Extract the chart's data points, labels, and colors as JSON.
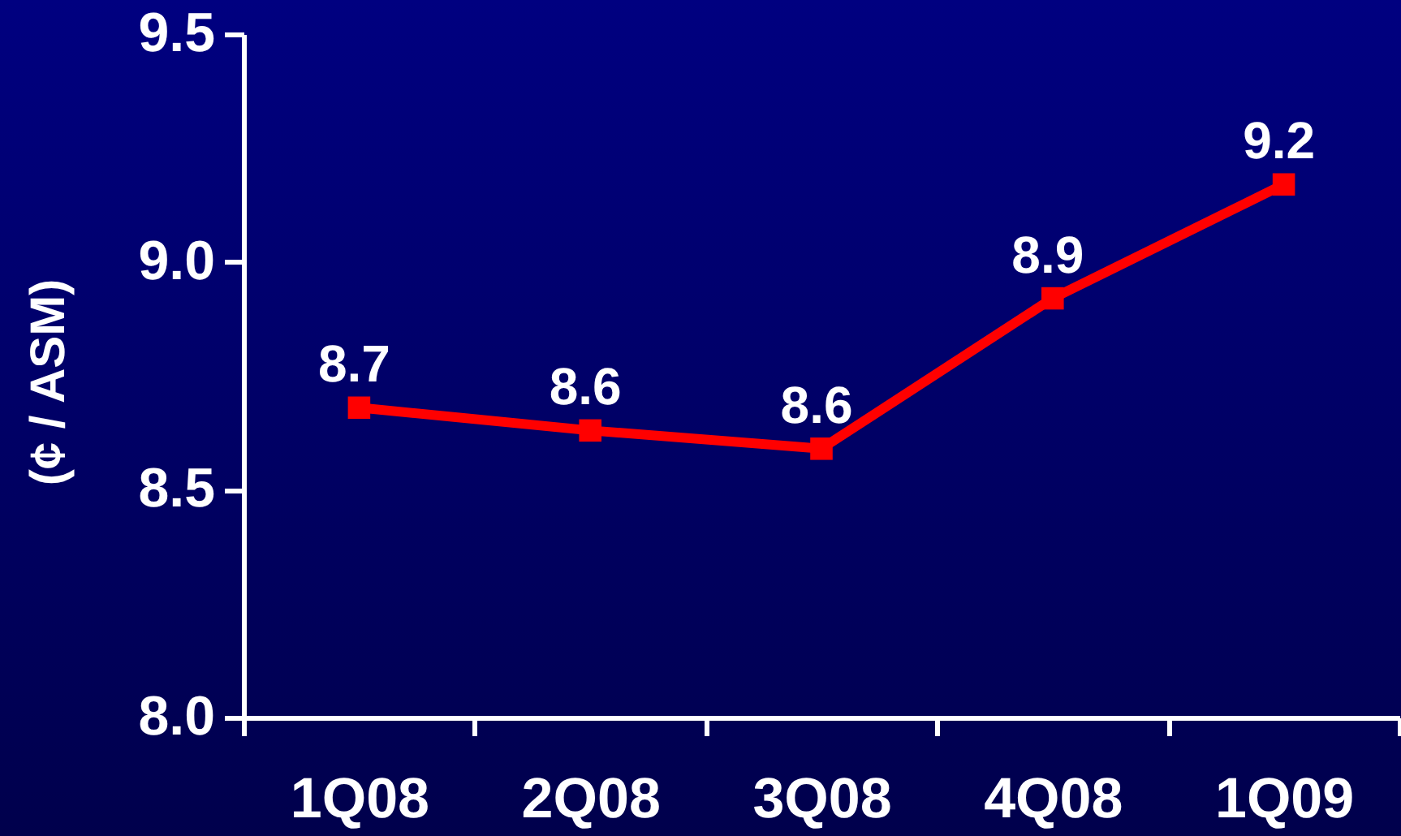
{
  "chart_data": {
    "type": "line",
    "ylabel": "(¢ / ASM)",
    "categories": [
      "1Q08",
      "2Q08",
      "3Q08",
      "4Q08",
      "1Q09"
    ],
    "values": [
      8.68,
      8.63,
      8.59,
      8.92,
      9.17
    ],
    "color": "#ff0000",
    "value_labels": [
      "8.7",
      "8.6",
      "8.6",
      "8.9",
      "9.2"
    ],
    "ylim": [
      8.0,
      9.5
    ],
    "yticks": [
      {
        "value": 8,
        "label": "8.0"
      },
      {
        "value": 8.5,
        "label": "8.5"
      },
      {
        "value": 9,
        "label": "9.0"
      },
      {
        "value": 9.5,
        "label": "9.5"
      }
    ],
    "marker": "square",
    "line_style": "solid"
  }
}
